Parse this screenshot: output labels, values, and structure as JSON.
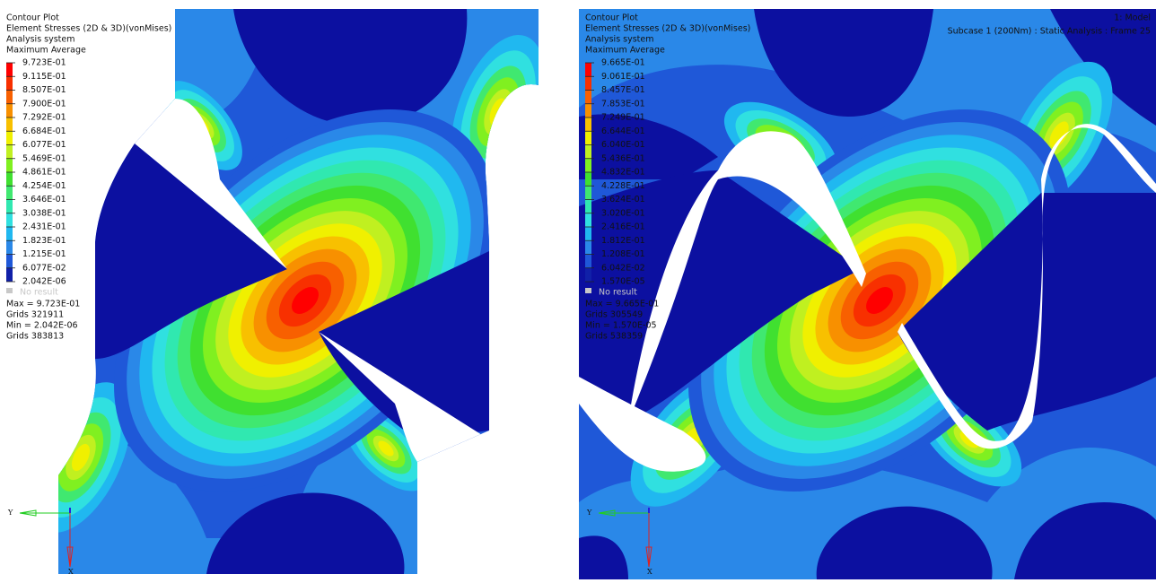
{
  "panels": [
    {
      "title": "Contour Plot",
      "result": "Element Stresses (2D & 3D)(vonMises)",
      "system": "Analysis system",
      "averaging": "Maximum Average",
      "legend": [
        "9.723E-01",
        "9.115E-01",
        "8.507E-01",
        "7.900E-01",
        "7.292E-01",
        "6.684E-01",
        "6.077E-01",
        "5.469E-01",
        "4.861E-01",
        "4.254E-01",
        "3.646E-01",
        "3.038E-01",
        "2.431E-01",
        "1.823E-01",
        "1.215E-01",
        "6.077E-02",
        "2.042E-06"
      ],
      "no_result": "No result",
      "max": "Max = 9.723E-01",
      "max_grids": "Grids 321911",
      "min": "Min = 2.042E-06",
      "min_grids": "Grids 383813",
      "axis_y": "Y",
      "axis_x": "X"
    },
    {
      "title": "Contour Plot",
      "result": "Element Stresses (2D & 3D)(vonMises)",
      "system": "Analysis system",
      "averaging": "Maximum Average",
      "legend": [
        "9.665E-01",
        "9.061E-01",
        "8.457E-01",
        "7.853E-01",
        "7.249E-01",
        "6.644E-01",
        "6.040E-01",
        "5.436E-01",
        "4.832E-01",
        "4.228E-01",
        "3.624E-01",
        "3.020E-01",
        "2.416E-01",
        "1.812E-01",
        "1.208E-01",
        "6.042E-02",
        "1.570E-05"
      ],
      "no_result": "No result",
      "max": "Max = 9.665E-01",
      "max_grids": "Grids 305549",
      "min": "Min = 1.570E-05",
      "min_grids": "Grids 538359",
      "axis_y": "Y",
      "axis_x": "X",
      "model": "1: Model",
      "subcase": "Subcase 1 (200Nm) : Static Analysis : Frame 25"
    }
  ]
}
